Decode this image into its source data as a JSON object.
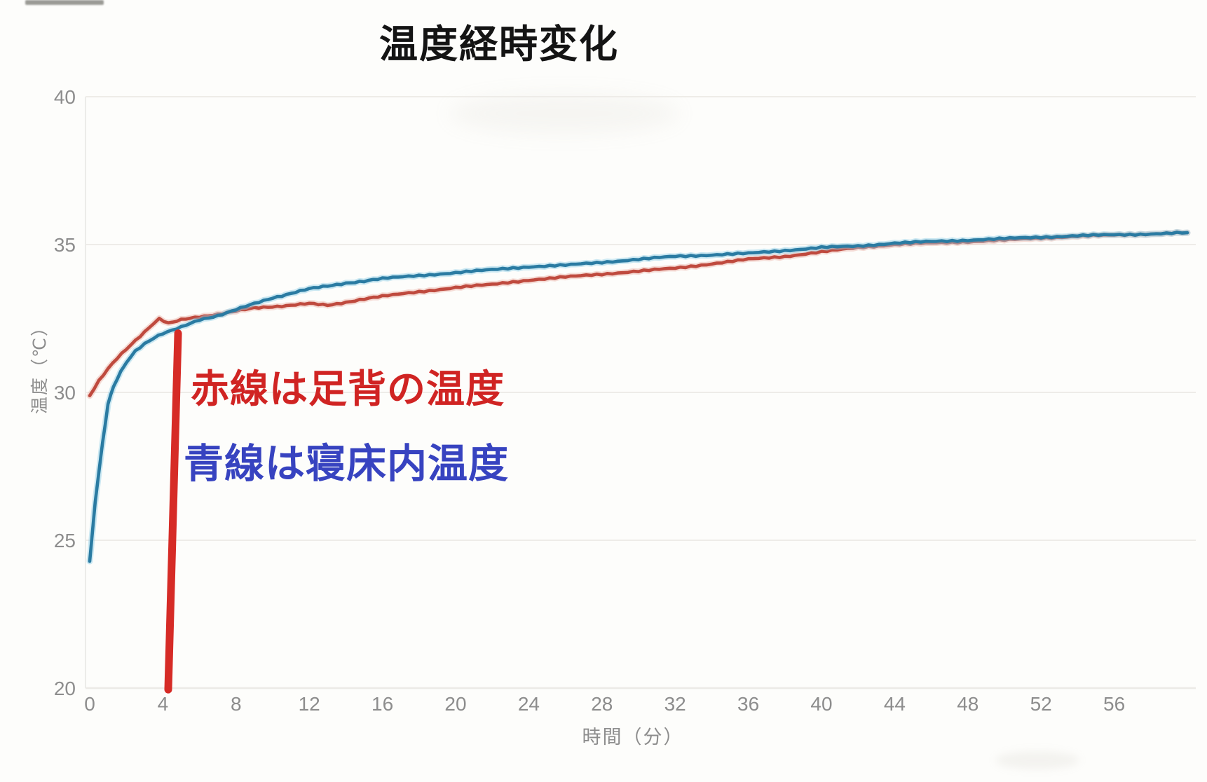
{
  "header": {
    "title": "温度経時変化"
  },
  "annotations": {
    "red_label": "赤線は足背の温度",
    "blue_label": "青線は寝床内温度",
    "red_text_color": "#d02423",
    "blue_text_color": "#3743c0"
  },
  "axes": {
    "x_title": "時間（分）",
    "y_title": "温度（℃）",
    "tick_color": "#8d8d8d",
    "grid_color": "#eceae6"
  },
  "chart_data": {
    "type": "line",
    "title": "温度経時変化",
    "xlabel": "時間（分）",
    "ylabel": "温度（℃）",
    "xlim": [
      0,
      60.5
    ],
    "ylim": [
      20,
      40
    ],
    "xticks": [
      0,
      4,
      8,
      12,
      16,
      20,
      24,
      28,
      32,
      36,
      40,
      44,
      48,
      52,
      56
    ],
    "yticks": [
      20,
      25,
      30,
      35,
      40
    ],
    "grid": "faint horizontal gridlines at each y tick, faint y-axis line",
    "legend_position": "none (labels given as in-plot colored text annotations)",
    "series": [
      {
        "name": "足背の温度",
        "color": "#bf4a3e",
        "halo_color": "#eab3a9",
        "points": [
          [
            0,
            29.9
          ],
          [
            0.5,
            30.4
          ],
          [
            1,
            30.8
          ],
          [
            1.5,
            31.15
          ],
          [
            2,
            31.45
          ],
          [
            2.5,
            31.75
          ],
          [
            3,
            32.05
          ],
          [
            3.5,
            32.35
          ],
          [
            3.8,
            32.5
          ],
          [
            4.3,
            32.35
          ],
          [
            5,
            32.45
          ],
          [
            6,
            32.55
          ],
          [
            7,
            32.65
          ],
          [
            8,
            32.75
          ],
          [
            9,
            32.85
          ],
          [
            10,
            32.9
          ],
          [
            11,
            32.95
          ],
          [
            12,
            33.0
          ],
          [
            13,
            32.95
          ],
          [
            14,
            33.05
          ],
          [
            15,
            33.15
          ],
          [
            16,
            33.25
          ],
          [
            18,
            33.4
          ],
          [
            20,
            33.55
          ],
          [
            22,
            33.65
          ],
          [
            24,
            33.8
          ],
          [
            26,
            33.9
          ],
          [
            28,
            34.0
          ],
          [
            30,
            34.1
          ],
          [
            32,
            34.2
          ],
          [
            34,
            34.35
          ],
          [
            36,
            34.5
          ],
          [
            38,
            34.6
          ],
          [
            40,
            34.75
          ],
          [
            42,
            34.9
          ],
          [
            44,
            35.0
          ],
          [
            46,
            35.05
          ],
          [
            48,
            35.1
          ],
          [
            50,
            35.15
          ],
          [
            52,
            35.22
          ],
          [
            54,
            35.28
          ],
          [
            56,
            35.32
          ],
          [
            58,
            35.36
          ],
          [
            60,
            35.4
          ]
        ]
      },
      {
        "name": "寝床内温度",
        "color": "#2a7ba2",
        "halo_color": "#8fcfe6",
        "points": [
          [
            0,
            24.3
          ],
          [
            0.3,
            26.3
          ],
          [
            0.7,
            28.3
          ],
          [
            1,
            29.6
          ],
          [
            1.3,
            30.2
          ],
          [
            1.7,
            30.7
          ],
          [
            2,
            31.0
          ],
          [
            2.5,
            31.4
          ],
          [
            3,
            31.65
          ],
          [
            3.5,
            31.85
          ],
          [
            4,
            32.0
          ],
          [
            5,
            32.2
          ],
          [
            6,
            32.45
          ],
          [
            7,
            32.6
          ],
          [
            8,
            32.8
          ],
          [
            9,
            33.0
          ],
          [
            10,
            33.2
          ],
          [
            11,
            33.35
          ],
          [
            12,
            33.5
          ],
          [
            13,
            33.6
          ],
          [
            14,
            33.7
          ],
          [
            15,
            33.75
          ],
          [
            16,
            33.85
          ],
          [
            18,
            33.95
          ],
          [
            20,
            34.05
          ],
          [
            22,
            34.15
          ],
          [
            24,
            34.25
          ],
          [
            26,
            34.3
          ],
          [
            28,
            34.4
          ],
          [
            30,
            34.5
          ],
          [
            32,
            34.6
          ],
          [
            34,
            34.65
          ],
          [
            36,
            34.7
          ],
          [
            38,
            34.8
          ],
          [
            40,
            34.9
          ],
          [
            42,
            34.95
          ],
          [
            44,
            35.05
          ],
          [
            46,
            35.1
          ],
          [
            48,
            35.15
          ],
          [
            50,
            35.2
          ],
          [
            52,
            35.25
          ],
          [
            54,
            35.3
          ],
          [
            56,
            35.33
          ],
          [
            58,
            35.36
          ],
          [
            60,
            35.4
          ]
        ]
      }
    ],
    "marker_line": {
      "description": "hand-drawn vertical red marker line near t=4.5 min",
      "color": "#d62b26",
      "t_top": 4.83,
      "temp_top": 32.0,
      "t_bottom": 4.29,
      "temp_bottom": 19.95
    }
  }
}
